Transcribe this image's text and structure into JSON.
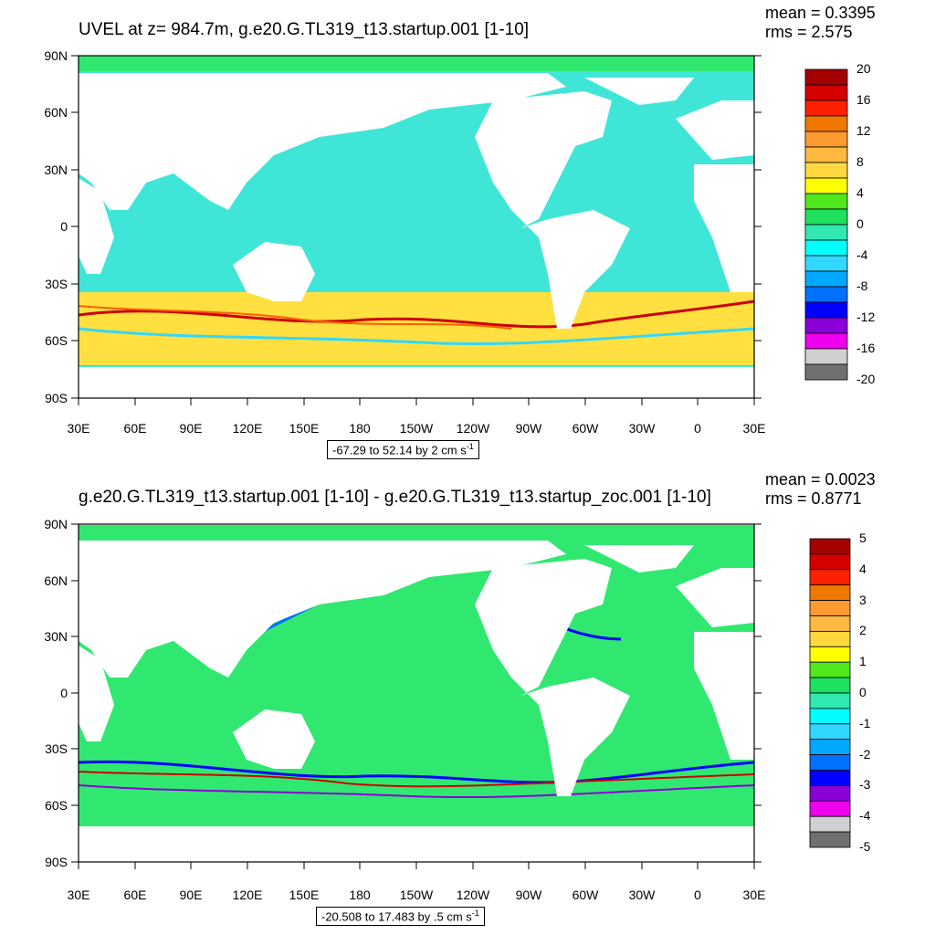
{
  "panels": [
    {
      "title": "UVEL at z= 984.7m, g.e20.G.TL319_t13.startup.001 [1-10]",
      "mean": "mean = 0.3395",
      "rms": "rms = 2.575",
      "contour_info": "-67.29 to 52.14 by 2 cm s",
      "contour_info_sup": "-1",
      "colorbar_labels": [
        "20",
        "16",
        "12",
        "8",
        "4",
        "0",
        "-4",
        "-8",
        "-12",
        "-16",
        "-20"
      ]
    },
    {
      "title": "g.e20.G.TL319_t13.startup.001 [1-10] - g.e20.G.TL319_t13.startup_zoc.001 [1-10]",
      "mean": "mean = 0.0023",
      "rms": "rms = 0.8771",
      "contour_info": "-20.508 to 17.483 by .5 cm s",
      "contour_info_sup": "-1",
      "colorbar_labels": [
        "5",
        "4",
        "3",
        "2",
        "1",
        "0",
        "-1",
        "-2",
        "-3",
        "-4",
        "-5"
      ]
    }
  ],
  "lat_labels": [
    "90N",
    "60N",
    "30N",
    "0",
    "30S",
    "60S",
    "90S"
  ],
  "lon_labels": [
    "30E",
    "60E",
    "90E",
    "120E",
    "150E",
    "180",
    "150W",
    "120W",
    "90W",
    "60W",
    "30W",
    "0",
    "30E"
  ],
  "colorbar_colors": [
    "#a50000",
    "#d40000",
    "#ff2000",
    "#f07800",
    "#ff9a30",
    "#ffb840",
    "#ffd840",
    "#ffff00",
    "#50e81c",
    "#20e060",
    "#30e8b0",
    "#00ffff",
    "#30d8ff",
    "#00a8ff",
    "#0070ff",
    "#0000ff",
    "#8b00d8",
    "#ee00ee",
    "#d0d0d0",
    "#707070"
  ],
  "colors": {
    "ocean_upper": "#3fe6d8",
    "ocean_lower": "#30e870",
    "land": "#ffffff"
  }
}
